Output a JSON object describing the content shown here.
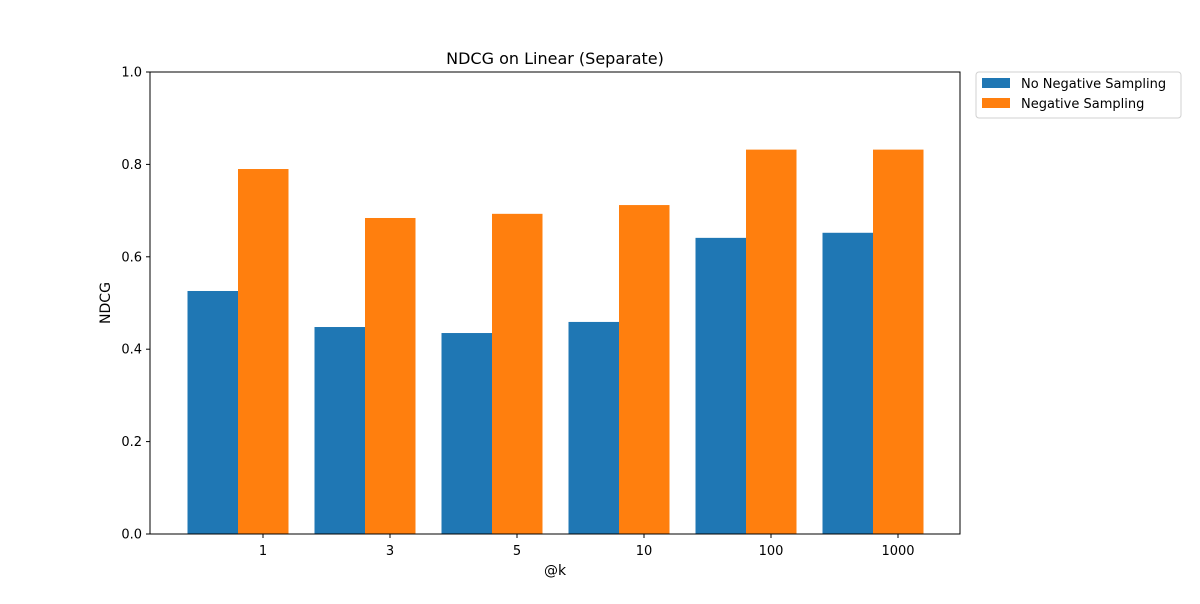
{
  "chart_data": {
    "type": "bar",
    "title": "NDCG on Linear (Separate)",
    "xlabel": "@k",
    "ylabel": "NDCG",
    "ylim": [
      0,
      1.0
    ],
    "yticks": [
      "0.0",
      "0.2",
      "0.4",
      "0.6",
      "0.8",
      "1.0"
    ],
    "categories": [
      "1",
      "3",
      "5",
      "10",
      "100",
      "1000"
    ],
    "series": [
      {
        "name": "No Negative Sampling",
        "color": "#1f77b4",
        "values": [
          0.526,
          0.448,
          0.435,
          0.459,
          0.641,
          0.652
        ]
      },
      {
        "name": "Negative Sampling",
        "color": "#ff7f0e",
        "values": [
          0.79,
          0.684,
          0.693,
          0.712,
          0.832,
          0.832
        ]
      }
    ],
    "grid": false,
    "legend_position": "outside top-right"
  }
}
